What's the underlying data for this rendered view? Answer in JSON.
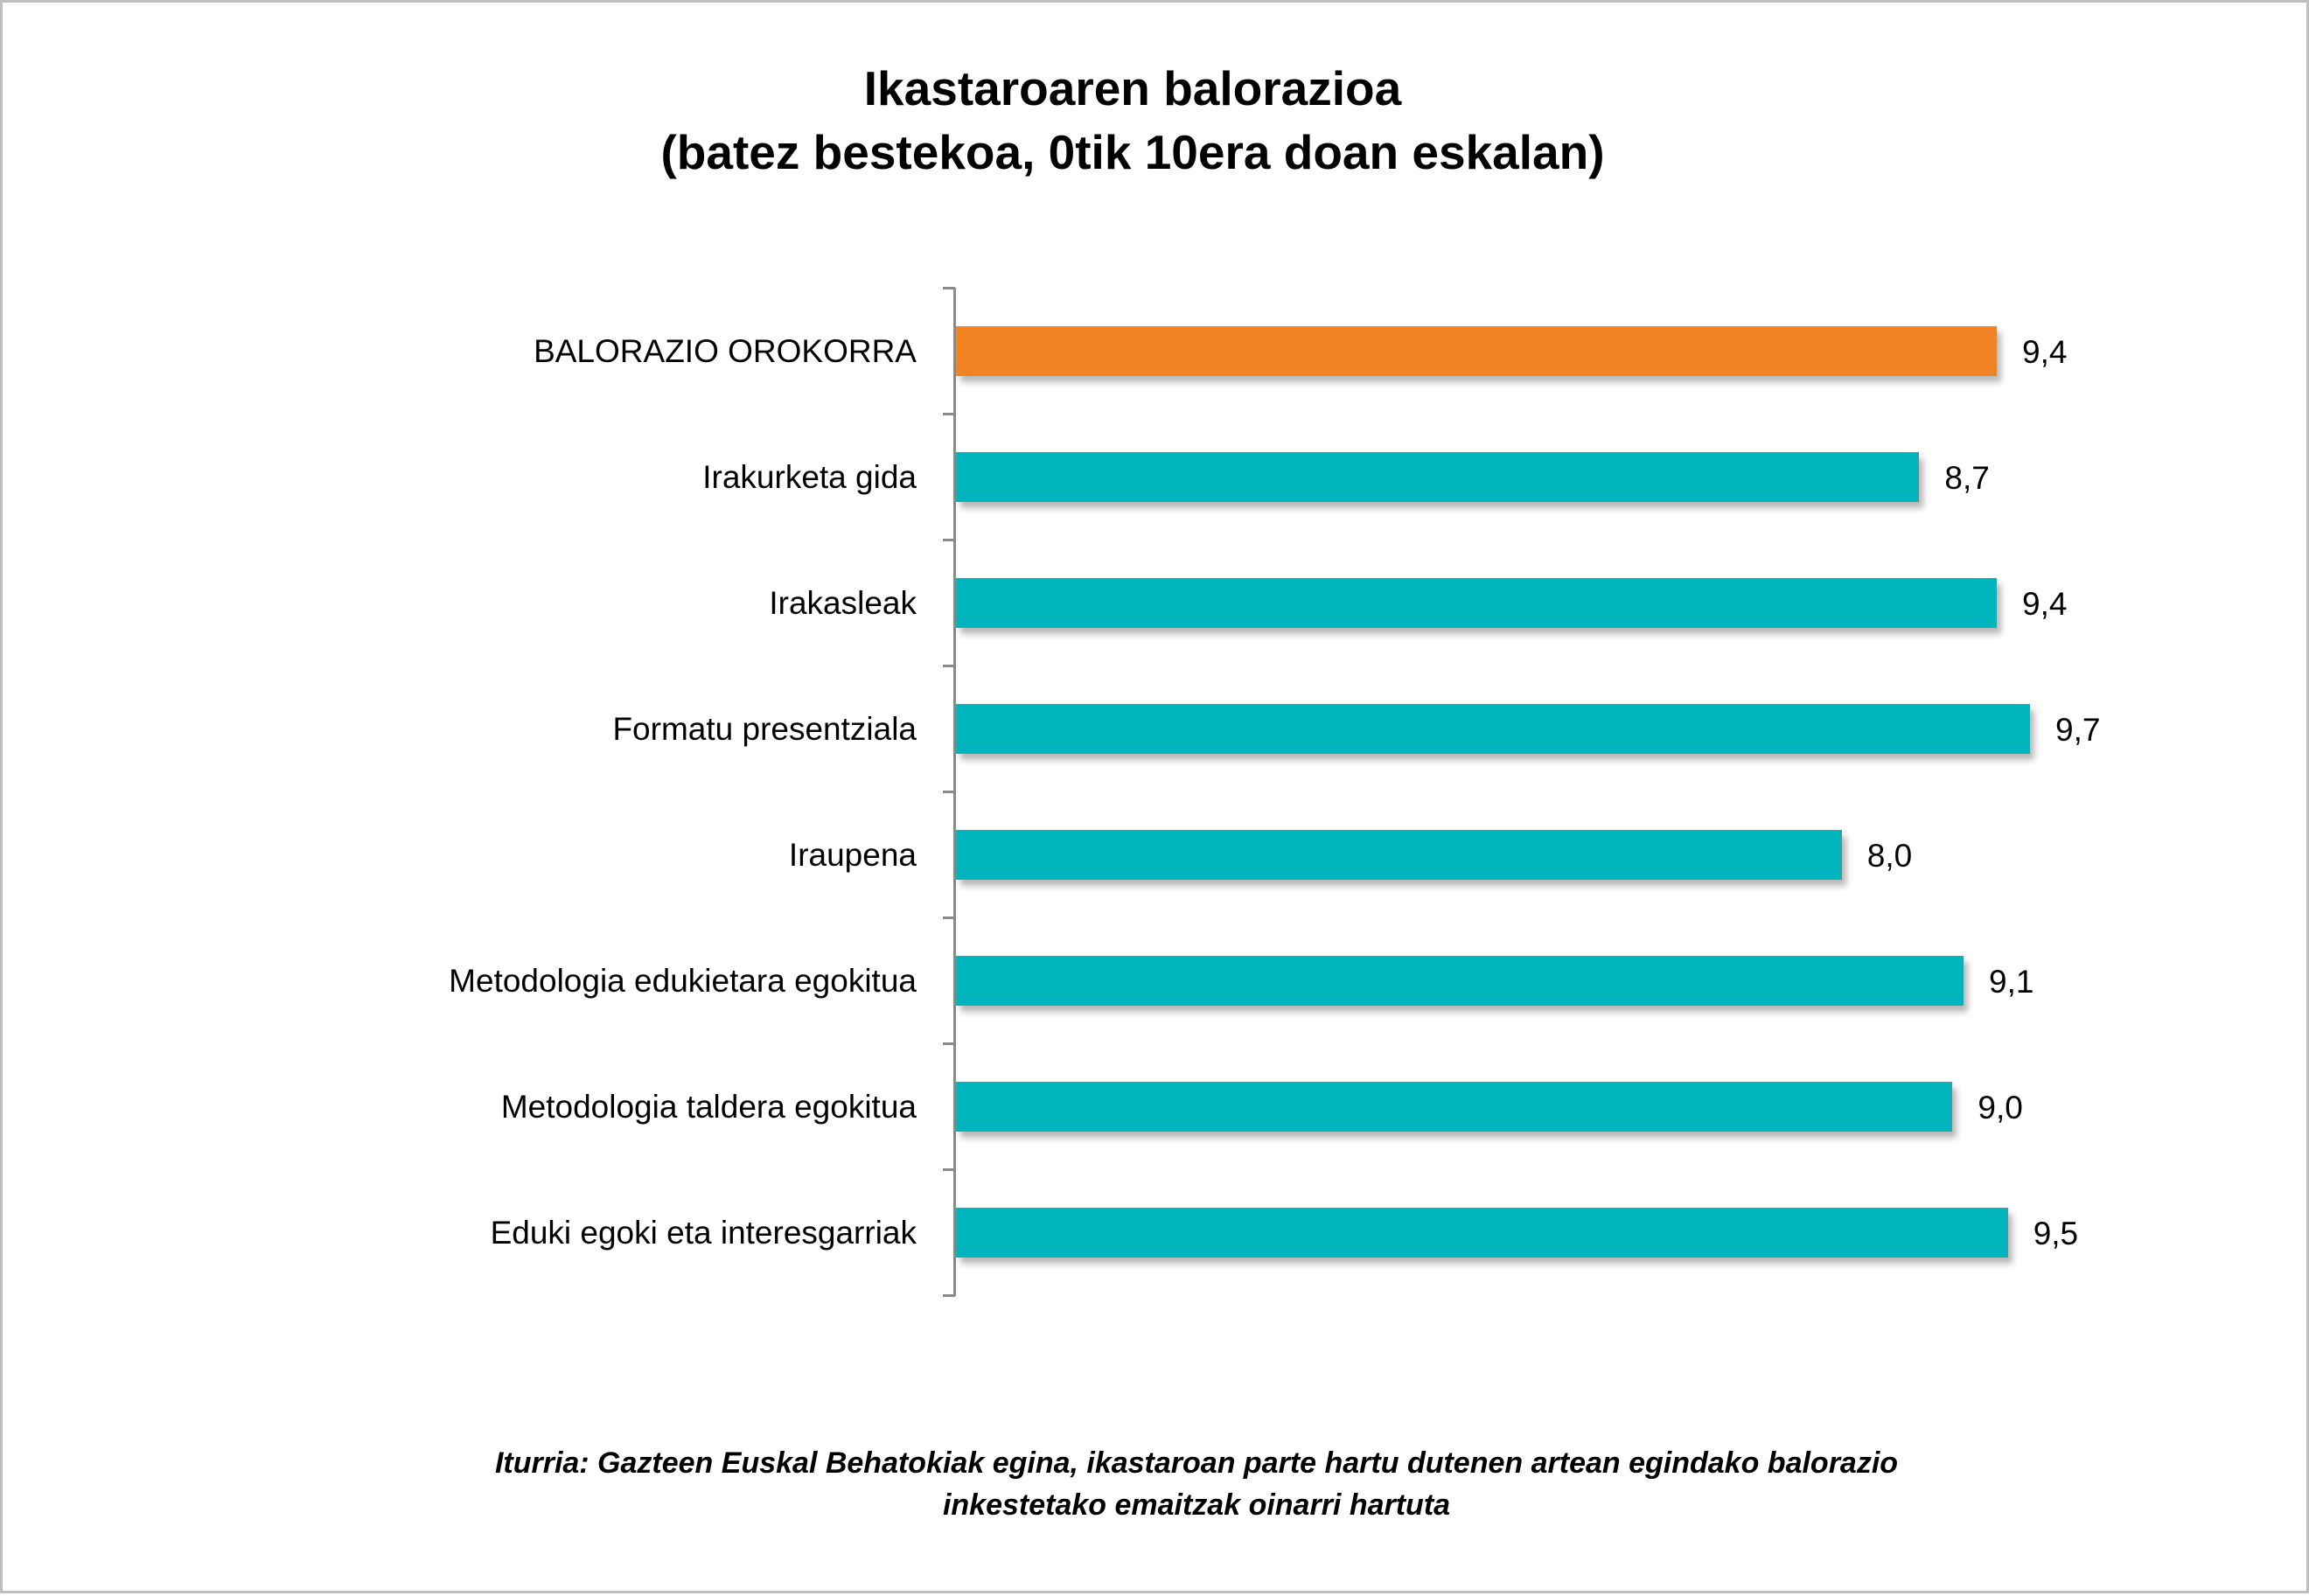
{
  "chart_data": {
    "type": "bar",
    "orientation": "horizontal",
    "title": "Ikastaroaren balorazioa (batez bestekoa, 0tik 10era doan eskalan)",
    "title_lines": [
      "Ikastaroaren balorazioa",
      "(batez bestekoa, 0tik 10era doan eskalan)"
    ],
    "categories": [
      "BALORAZIO OROKORRA",
      "Irakurketa gida",
      "Irakasleak",
      "Formatu presentziala",
      "Iraupena",
      "Metodologia edukietara egokitua",
      "Metodologia taldera egokitua",
      "Eduki egoki eta interesgarriak"
    ],
    "values": [
      9.4,
      8.7,
      9.4,
      9.7,
      8.0,
      9.1,
      9.0,
      9.5
    ],
    "value_labels": [
      "9,4",
      "8,7",
      "9,4",
      "9,7",
      "8,0",
      "9,1",
      "9,0",
      "9,5"
    ],
    "bar_colors": [
      "#F28324",
      "#00B5BD",
      "#00B5BD",
      "#00B5BD",
      "#00B5BD",
      "#00B5BD",
      "#00B5BD",
      "#00B5BD"
    ],
    "xlabel": "",
    "ylabel": "",
    "xlim": [
      0,
      10
    ],
    "grid": false,
    "legend": null,
    "footnote": "Iturria: Gazteen Euskal Behatokiak egina, ikastaroan parte hartu dutenen artean egindako balorazio inkestetako emaitzak oinarri hartuta"
  },
  "header": {
    "title_line1": "Ikastaroaren balorazioa",
    "title_line2": "(batez bestekoa, 0tik 10era doan eskalan)"
  },
  "footer": {
    "line1": "Iturria: Gazteen Euskal Behatokiak egina, ikastaroan parte hartu dutenen artean egindako balorazio",
    "line2": "inkestetako emaitzak oinarri hartuta"
  },
  "colors": {
    "highlight": "#F28324",
    "primary": "#00B5BD",
    "axis": "#8A8A8A",
    "frame": "#BEBEBE"
  }
}
